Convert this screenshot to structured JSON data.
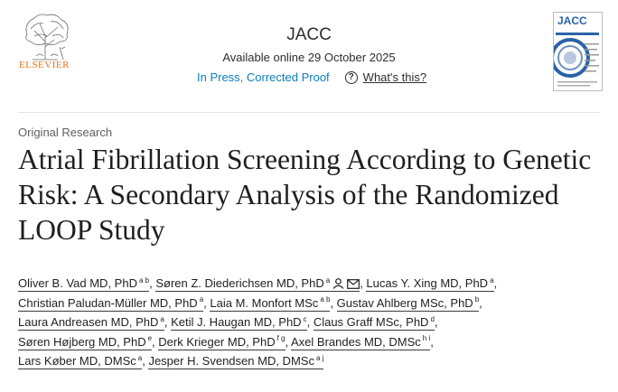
{
  "publisher": {
    "name": "ELSEVIER"
  },
  "journal": {
    "name": "JACC",
    "availability": "Available online 29 October 2025"
  },
  "status": {
    "link": "In Press, Corrected Proof",
    "help_label": "What's this?",
    "help_icon": "?"
  },
  "cover": {
    "title": "JACC",
    "accent_color": "#2b62a8"
  },
  "article": {
    "type": "Original Research",
    "title": "Atrial Fibrillation Screening According to Genetic Risk: A Secondary Analysis of the Randomized LOOP Study"
  },
  "authors": [
    {
      "name": "Oliver B. Vad MD, PhD",
      "sup": "a b"
    },
    {
      "name": "Søren Z. Diederichsen MD, PhD",
      "sup": "a"
    },
    {
      "name": "Lucas Y. Xing MD, PhD",
      "sup": "a"
    },
    {
      "name": "Christian Paludan-Müller MD, PhD",
      "sup": "a"
    },
    {
      "name": "Laia M. Monfort MSc",
      "sup": "a b"
    },
    {
      "name": "Gustav Ahlberg MSc, PhD",
      "sup": "b"
    },
    {
      "name": "Laura Andreasen MD, PhD",
      "sup": "a"
    },
    {
      "name": "Ketil J. Haugan MD, PhD",
      "sup": "c"
    },
    {
      "name": "Claus Graff MSc, PhD",
      "sup": "d"
    },
    {
      "name": "Søren Højberg MD, PhD",
      "sup": "e"
    },
    {
      "name": "Derk Krieger MD, PhD",
      "sup": "f g"
    },
    {
      "name": "Axel Brandes MD, DMSc",
      "sup": "h i"
    },
    {
      "name": "Lars Køber MD, DMSc",
      "sup": "a"
    },
    {
      "name": "Jesper H. Svendsen MD, DMSc",
      "sup": "a j"
    }
  ]
}
